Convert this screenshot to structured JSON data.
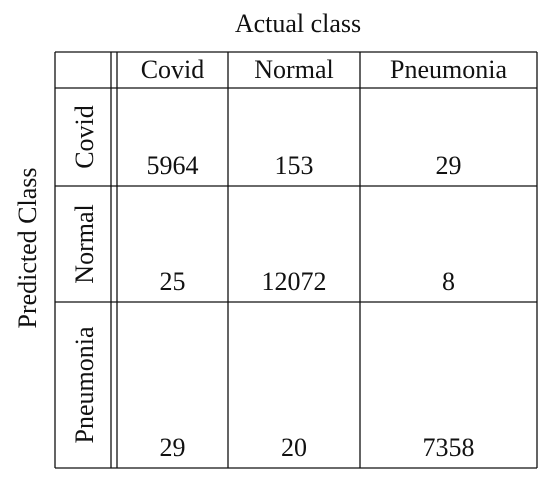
{
  "title": "Actual class",
  "side_title": "Predicted Class",
  "table": {
    "columns": [
      "Covid",
      "Normal",
      "Pneumonia"
    ],
    "rows": [
      {
        "label": "Covid",
        "values": [
          5964,
          153,
          29
        ]
      },
      {
        "label": "Normal",
        "values": [
          25,
          12072,
          8
        ]
      },
      {
        "label": "Pneumonia",
        "values": [
          29,
          20,
          7358
        ]
      }
    ]
  }
}
